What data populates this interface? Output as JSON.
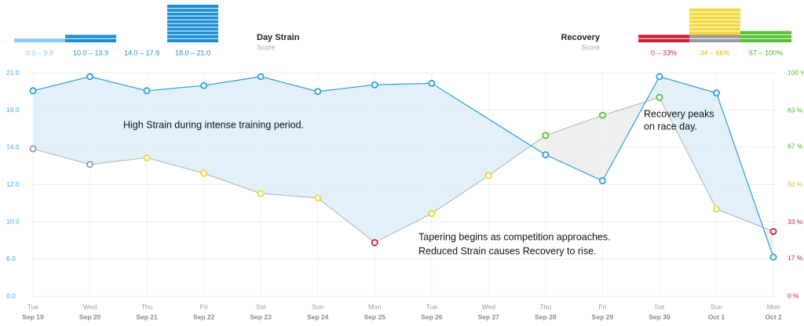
{
  "chart_data": [
    {
      "type": "bar",
      "title": "Day Strain",
      "subtitle": "Score",
      "categories": [
        "0.0 – 9.9",
        "10.0 – 13.9",
        "14.0 – 17.9",
        "18.0 – 21.0"
      ],
      "values": [
        1,
        2,
        0,
        10
      ],
      "colors": [
        "#8fcbf0",
        "#1a8fd8",
        "#1a8fd8",
        "#1a8fd8"
      ]
    },
    {
      "type": "stacked-bar",
      "title": "Recovery",
      "subtitle": "Score",
      "categories": [
        "0 – 33%",
        "34 – 66%",
        "67 – 100%"
      ],
      "label_colors": [
        "#cc1f36",
        "#d9b928",
        "#4cb82c"
      ],
      "series": [
        {
          "color": "#cc1f36",
          "values": [
            2,
            0,
            0
          ]
        },
        {
          "color": "#9a9a9a",
          "values": [
            0,
            2,
            0
          ]
        },
        {
          "color": "#f5d83a",
          "values": [
            0,
            7,
            0
          ]
        },
        {
          "color": "#52c234",
          "values": [
            0,
            0,
            3
          ]
        }
      ]
    },
    {
      "type": "line",
      "categories": [
        [
          "Tue",
          "Sep 19"
        ],
        [
          "Wed",
          "Sep 20"
        ],
        [
          "Thu",
          "Sep 21"
        ],
        [
          "Fri",
          "Sep 22"
        ],
        [
          "Sat",
          "Sep 23"
        ],
        [
          "Sun",
          "Sep 24"
        ],
        [
          "Mon",
          "Sep 25"
        ],
        [
          "Tue",
          "Sep 26"
        ],
        [
          "Wed",
          "Sep 27"
        ],
        [
          "Thu",
          "Sep 28"
        ],
        [
          "Fri",
          "Sep 29"
        ],
        [
          "Sat",
          "Sep 30"
        ],
        [
          "Sun",
          "Oct 1"
        ],
        [
          "Mon",
          "Oct 2"
        ]
      ],
      "series": [
        {
          "color": "#2a9fd8",
          "axis": "y",
          "connect_gaps": true,
          "values": [
            18.6,
            20.5,
            18.6,
            19.3,
            20.5,
            18.5,
            19.4,
            19.6,
            null,
            13.6,
            12.2,
            20.5,
            18.3,
            6.2
          ]
        },
        {
          "color": "#bdbdbd",
          "axis": "y2",
          "point_colors": [
            "#9a9a9a",
            "#9a9a9a",
            "#f2d430",
            "#f2d430",
            "#f2d430",
            "#f2d430",
            "#cc1f36",
            "#f2d430",
            "#f2d430",
            "#52c234",
            "#52c234",
            "#52c234",
            "#f2d430",
            "#cc1f36"
          ],
          "values": [
            66,
            59,
            62,
            55,
            46,
            44,
            24,
            37,
            54,
            72,
            81,
            89,
            39,
            29
          ]
        }
      ],
      "ylim": [
        0,
        21
      ],
      "yticks": [
        {
          "value": 0,
          "label": "0.0"
        },
        {
          "value": 6,
          "label": "6.0"
        },
        {
          "value": 10,
          "label": "10.0"
        },
        {
          "value": 12,
          "label": "12.0"
        },
        {
          "value": 14,
          "label": "14.0"
        },
        {
          "value": 16,
          "label": "16.0"
        },
        {
          "value": 21,
          "label": "21.0"
        }
      ],
      "y2lim": [
        0,
        100
      ],
      "y2ticks": [
        {
          "value": 0,
          "label": "0 %"
        },
        {
          "value": 17,
          "label": "17 %"
        },
        {
          "value": 33,
          "label": "33 %"
        },
        {
          "value": 50,
          "label": "50 %"
        },
        {
          "value": 67,
          "label": "67 %"
        },
        {
          "value": 83,
          "label": "83 %"
        },
        {
          "value": 100,
          "label": "100 %"
        }
      ],
      "ytick_color": "#4aa3df",
      "y2tick_colors": [
        "#cc1f36",
        "#cc1f36",
        "#cc1f36",
        "#d9b928",
        "#4cb82c",
        "#4cb82c",
        "#4cb82c"
      ],
      "grid": true,
      "annotations": [
        [
          "High Strain during intense training period."
        ],
        [
          "Tapering begins as competition approaches.",
          "Reduced Strain causes Recovery to rise."
        ],
        [
          "Recovery peaks",
          "on race day."
        ]
      ]
    }
  ]
}
